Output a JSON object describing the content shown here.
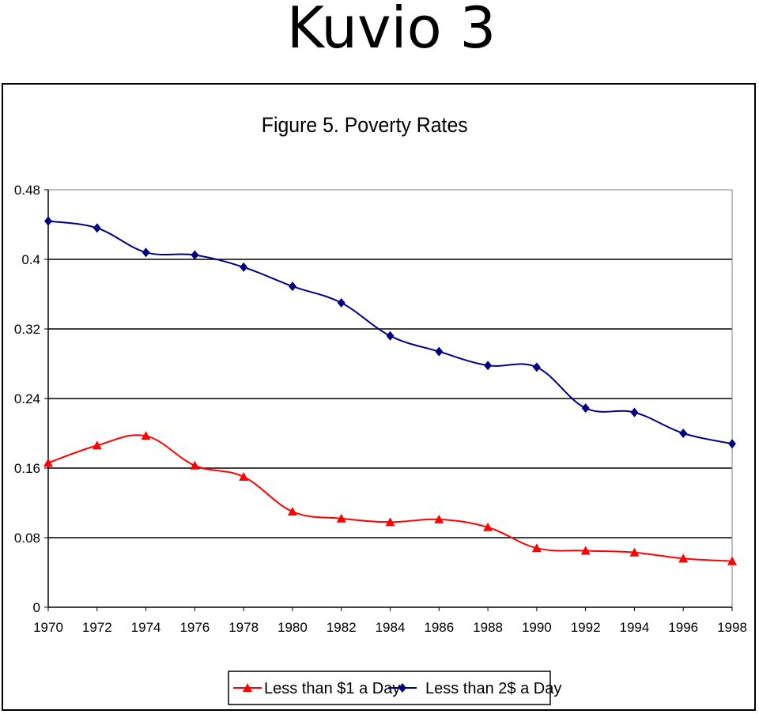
{
  "slide": {
    "title": "Kuvio 3"
  },
  "chart_data": {
    "type": "line",
    "title": "Figure 5. Poverty Rates",
    "xlabel": "",
    "ylabel": "",
    "x": [
      1970,
      1972,
      1974,
      1976,
      1978,
      1980,
      1982,
      1984,
      1986,
      1988,
      1990,
      1992,
      1994,
      1996,
      1998
    ],
    "x_tick_labels": [
      "1970",
      "1972",
      "1974",
      "1976",
      "1978",
      "1980",
      "1982",
      "1984",
      "1986",
      "1988",
      "1990",
      "1992",
      "1994",
      "1996",
      "1998"
    ],
    "ylim": [
      0,
      0.48
    ],
    "y_ticks": [
      0,
      0.08,
      0.16,
      0.24,
      0.32,
      0.4,
      0.48
    ],
    "y_tick_labels": [
      "0",
      "0.08",
      "0.16",
      "0.24",
      "0.32",
      "0.4",
      "0.48"
    ],
    "grid": "horizontal",
    "legend_position": "bottom",
    "series": [
      {
        "name": "Less than $1 a Day",
        "color": "#ff0000",
        "marker": "triangle",
        "values": [
          0.166,
          0.186,
          0.197,
          0.163,
          0.15,
          0.11,
          0.102,
          0.098,
          0.101,
          0.092,
          0.068,
          0.065,
          0.063,
          0.056,
          0.053
        ]
      },
      {
        "name": "Less than 2$ a Day",
        "color": "#000080",
        "marker": "diamond",
        "values": [
          0.444,
          0.436,
          0.408,
          0.405,
          0.391,
          0.369,
          0.35,
          0.312,
          0.294,
          0.278,
          0.276,
          0.229,
          0.224,
          0.2,
          0.188
        ]
      }
    ]
  }
}
